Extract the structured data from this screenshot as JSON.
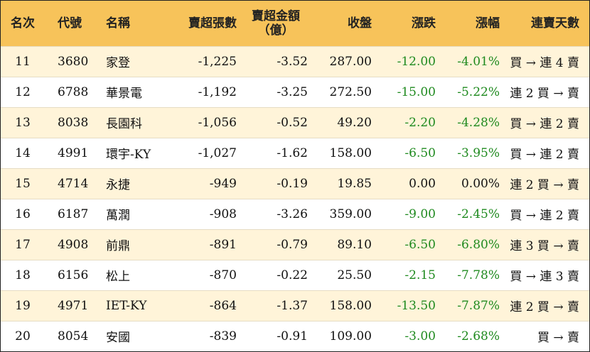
{
  "headers": {
    "rank": "名次",
    "code": "代號",
    "name": "名稱",
    "net_sell_lots": "賣超張數",
    "net_sell_amount_l1": "賣超金額",
    "net_sell_amount_l2": "（億）",
    "close": "收盤",
    "change": "漲跌",
    "change_pct": "漲幅",
    "streak": "連賣天數"
  },
  "colors": {
    "header_bg": "#f7c35a",
    "stripe_bg": "#fff4d9",
    "negative": "#1f8a1f"
  },
  "rows": [
    {
      "rank": "11",
      "code": "3680",
      "name": "家登",
      "lots": "-1,225",
      "amount": "-3.52",
      "close": "287.00",
      "change": "-12.00",
      "pct": "-4.01%",
      "streak": "買 → 連 4 賣"
    },
    {
      "rank": "12",
      "code": "6788",
      "name": "華景電",
      "lots": "-1,192",
      "amount": "-3.25",
      "close": "272.50",
      "change": "-15.00",
      "pct": "-5.22%",
      "streak": "連 2 買 → 賣"
    },
    {
      "rank": "13",
      "code": "8038",
      "name": "長園科",
      "lots": "-1,056",
      "amount": "-0.52",
      "close": "49.20",
      "change": "-2.20",
      "pct": "-4.28%",
      "streak": "買 → 連 2 賣"
    },
    {
      "rank": "14",
      "code": "4991",
      "name": "環宇-KY",
      "lots": "-1,027",
      "amount": "-1.62",
      "close": "158.00",
      "change": "-6.50",
      "pct": "-3.95%",
      "streak": "買 → 連 2 賣"
    },
    {
      "rank": "15",
      "code": "4714",
      "name": "永捷",
      "lots": "-949",
      "amount": "-0.19",
      "close": "19.85",
      "change": "0.00",
      "pct": "0.00%",
      "streak": "連 2 買 → 賣"
    },
    {
      "rank": "16",
      "code": "6187",
      "name": "萬潤",
      "lots": "-908",
      "amount": "-3.26",
      "close": "359.00",
      "change": "-9.00",
      "pct": "-2.45%",
      "streak": "買 → 連 2 賣"
    },
    {
      "rank": "17",
      "code": "4908",
      "name": "前鼎",
      "lots": "-891",
      "amount": "-0.79",
      "close": "89.10",
      "change": "-6.50",
      "pct": "-6.80%",
      "streak": "連 3 買 → 賣"
    },
    {
      "rank": "18",
      "code": "6156",
      "name": "松上",
      "lots": "-870",
      "amount": "-0.22",
      "close": "25.50",
      "change": "-2.15",
      "pct": "-7.78%",
      "streak": "買 → 連 3 賣"
    },
    {
      "rank": "19",
      "code": "4971",
      "name": "IET-KY",
      "lots": "-864",
      "amount": "-1.37",
      "close": "158.00",
      "change": "-13.50",
      "pct": "-7.87%",
      "streak": "連 2 買 → 賣"
    },
    {
      "rank": "20",
      "code": "8054",
      "name": "安國",
      "lots": "-839",
      "amount": "-0.91",
      "close": "109.00",
      "change": "-3.00",
      "pct": "-2.68%",
      "streak": "買 → 賣"
    }
  ]
}
